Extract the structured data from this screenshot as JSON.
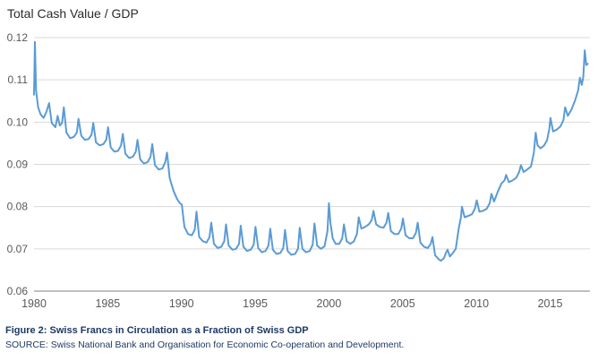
{
  "page": {
    "title": "Total Cash Value / GDP"
  },
  "caption": {
    "figure": "Figure 2: Swiss Francs in Circulation as a Fraction of Swiss GDP",
    "source": "SOURCE: Swiss National Bank and Organisation for Economic Co-operation and Development."
  },
  "chart_data": {
    "type": "line",
    "title": "Total Cash Value / GDP",
    "series_name": "Swiss francs in circulation as a fraction of Swiss GDP",
    "x_range": [
      1980,
      2017.7
    ],
    "y_range": [
      0.06,
      0.12
    ],
    "y_ticks": [
      "0.06",
      "0.07",
      "0.08",
      "0.09",
      "0.10",
      "0.11",
      "0.12"
    ],
    "x_ticks": [
      1980,
      1985,
      1990,
      1995,
      2000,
      2005,
      2010,
      2015
    ],
    "grid": "horizontal",
    "legend": "none",
    "line_color": "#5b9bd5",
    "grid_color": "#d9d9d9",
    "axis_color": "#7f7f7f",
    "tick_label_color": "#595959",
    "points": [
      [
        1980.0,
        0.1065
      ],
      [
        1980.06,
        0.119
      ],
      [
        1980.14,
        0.1075
      ],
      [
        1980.28,
        0.1035
      ],
      [
        1980.45,
        0.1018
      ],
      [
        1980.65,
        0.101
      ],
      [
        1980.85,
        0.1025
      ],
      [
        1981.02,
        0.1045
      ],
      [
        1981.2,
        0.0998
      ],
      [
        1981.45,
        0.0988
      ],
      [
        1981.6,
        0.1015
      ],
      [
        1981.75,
        0.0992
      ],
      [
        1981.9,
        0.0998
      ],
      [
        1982.02,
        0.1035
      ],
      [
        1982.2,
        0.0975
      ],
      [
        1982.45,
        0.0962
      ],
      [
        1982.7,
        0.0965
      ],
      [
        1982.9,
        0.0975
      ],
      [
        1983.02,
        0.1008
      ],
      [
        1983.2,
        0.0968
      ],
      [
        1983.45,
        0.0958
      ],
      [
        1983.7,
        0.096
      ],
      [
        1983.9,
        0.097
      ],
      [
        1984.02,
        0.0998
      ],
      [
        1984.2,
        0.0952
      ],
      [
        1984.45,
        0.0945
      ],
      [
        1984.7,
        0.0948
      ],
      [
        1984.9,
        0.0958
      ],
      [
        1985.02,
        0.0988
      ],
      [
        1985.2,
        0.094
      ],
      [
        1985.45,
        0.093
      ],
      [
        1985.7,
        0.0932
      ],
      [
        1985.9,
        0.0945
      ],
      [
        1986.02,
        0.0972
      ],
      [
        1986.2,
        0.0925
      ],
      [
        1986.45,
        0.0915
      ],
      [
        1986.7,
        0.0918
      ],
      [
        1986.9,
        0.093
      ],
      [
        1987.02,
        0.0958
      ],
      [
        1987.2,
        0.0912
      ],
      [
        1987.45,
        0.0902
      ],
      [
        1987.7,
        0.0905
      ],
      [
        1987.9,
        0.0918
      ],
      [
        1988.02,
        0.0948
      ],
      [
        1988.2,
        0.0898
      ],
      [
        1988.45,
        0.0888
      ],
      [
        1988.7,
        0.089
      ],
      [
        1988.9,
        0.0905
      ],
      [
        1989.02,
        0.0928
      ],
      [
        1989.2,
        0.0868
      ],
      [
        1989.45,
        0.0838
      ],
      [
        1989.7,
        0.0818
      ],
      [
        1989.9,
        0.0808
      ],
      [
        1990.02,
        0.0805
      ],
      [
        1990.2,
        0.0752
      ],
      [
        1990.45,
        0.0735
      ],
      [
        1990.7,
        0.0732
      ],
      [
        1990.9,
        0.0745
      ],
      [
        1991.02,
        0.0788
      ],
      [
        1991.2,
        0.0728
      ],
      [
        1991.45,
        0.0718
      ],
      [
        1991.7,
        0.0715
      ],
      [
        1991.9,
        0.0728
      ],
      [
        1992.02,
        0.0762
      ],
      [
        1992.2,
        0.0712
      ],
      [
        1992.45,
        0.0702
      ],
      [
        1992.7,
        0.0705
      ],
      [
        1992.9,
        0.0718
      ],
      [
        1993.02,
        0.0758
      ],
      [
        1993.2,
        0.0708
      ],
      [
        1993.45,
        0.0698
      ],
      [
        1993.7,
        0.07
      ],
      [
        1993.9,
        0.0712
      ],
      [
        1994.02,
        0.0755
      ],
      [
        1994.2,
        0.0705
      ],
      [
        1994.45,
        0.0695
      ],
      [
        1994.7,
        0.0698
      ],
      [
        1994.9,
        0.071
      ],
      [
        1995.02,
        0.0752
      ],
      [
        1995.2,
        0.0702
      ],
      [
        1995.45,
        0.0692
      ],
      [
        1995.7,
        0.0695
      ],
      [
        1995.9,
        0.0708
      ],
      [
        1996.02,
        0.0748
      ],
      [
        1996.2,
        0.0698
      ],
      [
        1996.45,
        0.0688
      ],
      [
        1996.7,
        0.069
      ],
      [
        1996.9,
        0.0702
      ],
      [
        1997.02,
        0.0745
      ],
      [
        1997.2,
        0.0695
      ],
      [
        1997.45,
        0.0686
      ],
      [
        1997.7,
        0.0688
      ],
      [
        1997.9,
        0.07
      ],
      [
        1998.02,
        0.075
      ],
      [
        1998.2,
        0.07
      ],
      [
        1998.45,
        0.0692
      ],
      [
        1998.7,
        0.0695
      ],
      [
        1998.9,
        0.071
      ],
      [
        1999.02,
        0.076
      ],
      [
        1999.2,
        0.0708
      ],
      [
        1999.45,
        0.07
      ],
      [
        1999.7,
        0.0706
      ],
      [
        1999.9,
        0.0742
      ],
      [
        2000.0,
        0.0808
      ],
      [
        2000.1,
        0.0762
      ],
      [
        2000.25,
        0.0725
      ],
      [
        2000.45,
        0.0712
      ],
      [
        2000.7,
        0.0712
      ],
      [
        2000.9,
        0.0725
      ],
      [
        2001.02,
        0.0758
      ],
      [
        2001.2,
        0.0718
      ],
      [
        2001.45,
        0.0712
      ],
      [
        2001.7,
        0.0718
      ],
      [
        2001.9,
        0.0735
      ],
      [
        2002.02,
        0.0775
      ],
      [
        2002.2,
        0.0748
      ],
      [
        2002.45,
        0.0752
      ],
      [
        2002.7,
        0.0758
      ],
      [
        2002.9,
        0.0768
      ],
      [
        2003.02,
        0.079
      ],
      [
        2003.2,
        0.0758
      ],
      [
        2003.45,
        0.0752
      ],
      [
        2003.7,
        0.075
      ],
      [
        2003.9,
        0.0762
      ],
      [
        2004.02,
        0.0785
      ],
      [
        2004.2,
        0.0742
      ],
      [
        2004.45,
        0.0735
      ],
      [
        2004.7,
        0.0735
      ],
      [
        2004.9,
        0.0748
      ],
      [
        2005.02,
        0.0772
      ],
      [
        2005.2,
        0.0732
      ],
      [
        2005.45,
        0.0725
      ],
      [
        2005.7,
        0.0725
      ],
      [
        2005.9,
        0.0738
      ],
      [
        2006.02,
        0.0762
      ],
      [
        2006.2,
        0.0715
      ],
      [
        2006.45,
        0.0705
      ],
      [
        2006.7,
        0.0702
      ],
      [
        2006.9,
        0.0712
      ],
      [
        2007.02,
        0.0728
      ],
      [
        2007.2,
        0.0685
      ],
      [
        2007.45,
        0.0675
      ],
      [
        2007.6,
        0.0672
      ],
      [
        2007.8,
        0.0678
      ],
      [
        2007.95,
        0.0692
      ],
      [
        2008.05,
        0.0698
      ],
      [
        2008.2,
        0.0682
      ],
      [
        2008.4,
        0.069
      ],
      [
        2008.6,
        0.07
      ],
      [
        2008.8,
        0.0748
      ],
      [
        2008.95,
        0.0775
      ],
      [
        2009.02,
        0.08
      ],
      [
        2009.2,
        0.0775
      ],
      [
        2009.45,
        0.0778
      ],
      [
        2009.7,
        0.0782
      ],
      [
        2009.9,
        0.0795
      ],
      [
        2010.02,
        0.0815
      ],
      [
        2010.2,
        0.0788
      ],
      [
        2010.45,
        0.079
      ],
      [
        2010.7,
        0.0795
      ],
      [
        2010.9,
        0.0808
      ],
      [
        2011.02,
        0.083
      ],
      [
        2011.2,
        0.0812
      ],
      [
        2011.45,
        0.0835
      ],
      [
        2011.7,
        0.0855
      ],
      [
        2011.9,
        0.0862
      ],
      [
        2012.02,
        0.0875
      ],
      [
        2012.2,
        0.0858
      ],
      [
        2012.45,
        0.0862
      ],
      [
        2012.7,
        0.0868
      ],
      [
        2012.9,
        0.0882
      ],
      [
        2013.02,
        0.0898
      ],
      [
        2013.2,
        0.0882
      ],
      [
        2013.45,
        0.0888
      ],
      [
        2013.7,
        0.0895
      ],
      [
        2013.9,
        0.0928
      ],
      [
        2014.02,
        0.0975
      ],
      [
        2014.15,
        0.0945
      ],
      [
        2014.35,
        0.0938
      ],
      [
        2014.6,
        0.0945
      ],
      [
        2014.8,
        0.0958
      ],
      [
        2014.95,
        0.0985
      ],
      [
        2015.02,
        0.101
      ],
      [
        2015.2,
        0.0978
      ],
      [
        2015.45,
        0.0982
      ],
      [
        2015.7,
        0.099
      ],
      [
        2015.9,
        0.1005
      ],
      [
        2016.02,
        0.1035
      ],
      [
        2016.2,
        0.1015
      ],
      [
        2016.45,
        0.103
      ],
      [
        2016.7,
        0.1052
      ],
      [
        2016.9,
        0.1075
      ],
      [
        2017.02,
        0.1105
      ],
      [
        2017.15,
        0.1088
      ],
      [
        2017.25,
        0.1108
      ],
      [
        2017.35,
        0.117
      ],
      [
        2017.45,
        0.1135
      ],
      [
        2017.55,
        0.1138
      ]
    ]
  }
}
